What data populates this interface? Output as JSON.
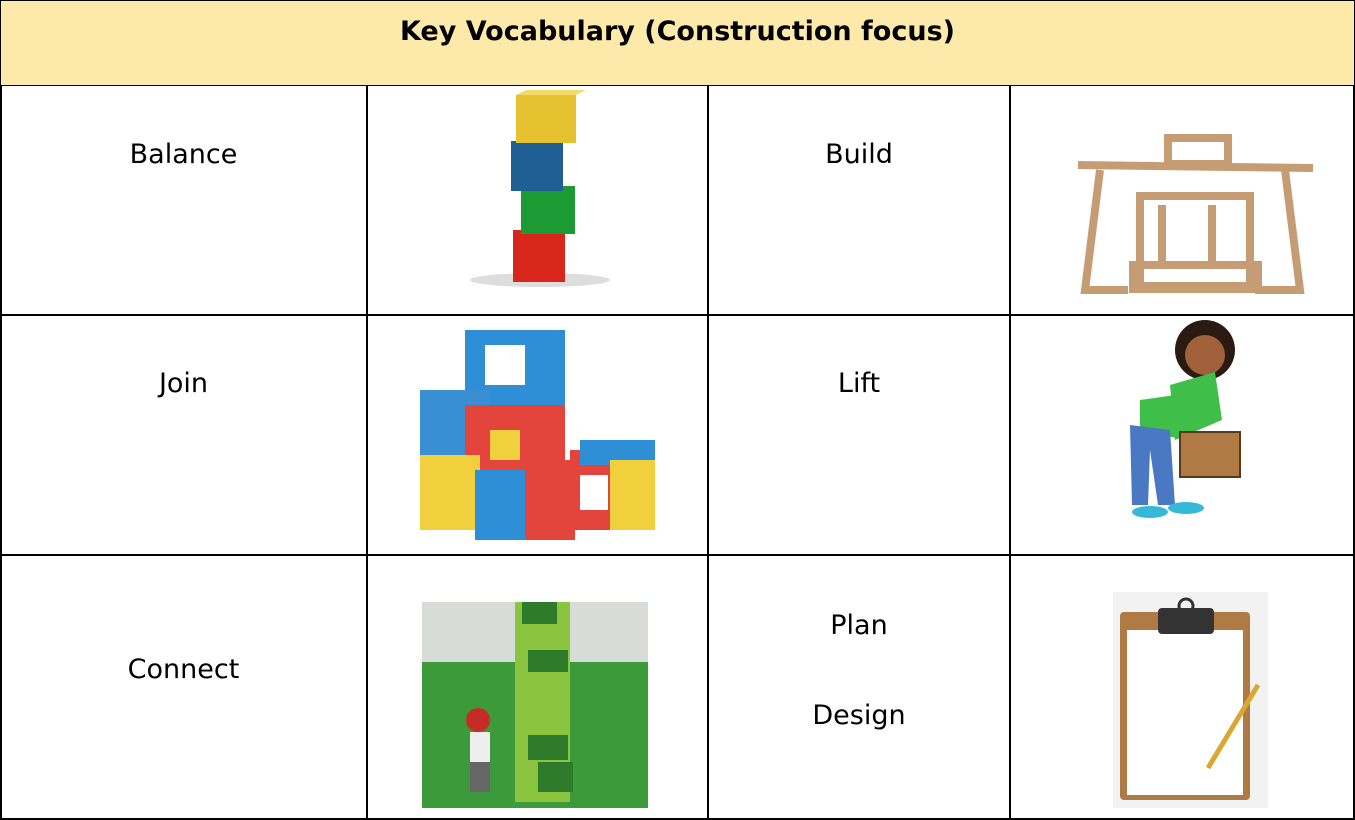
{
  "header": {
    "title": "Key Vocabulary (Construction focus)"
  },
  "table": {
    "rows": [
      [
        [
          "Balance"
        ],
        [
          "Build"
        ]
      ],
      [
        [
          "Join"
        ],
        [
          "Lift"
        ]
      ],
      [
        [
          "Connect"
        ],
        [
          "Plan",
          "Design"
        ]
      ]
    ]
  }
}
